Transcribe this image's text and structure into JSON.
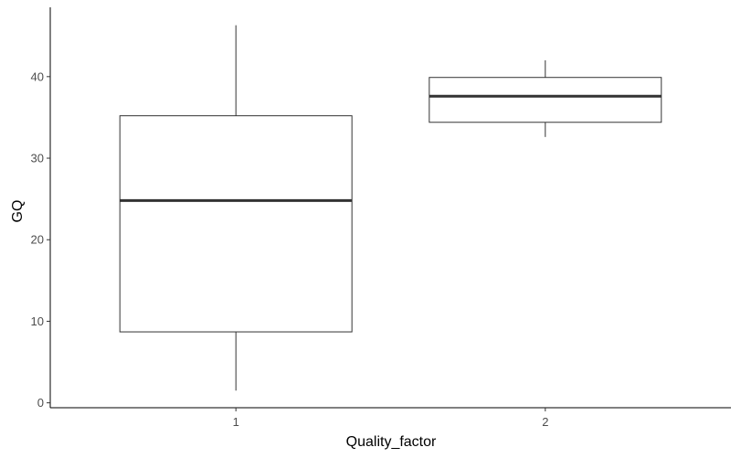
{
  "chart_data": {
    "type": "boxplot",
    "title": "",
    "xlabel": "Quality_factor",
    "ylabel": "GQ",
    "categories": [
      "1",
      "2"
    ],
    "boxes": [
      {
        "category": "1",
        "whisker_low": 1.5,
        "q1": 8.7,
        "median": 24.8,
        "q3": 35.2,
        "whisker_high": 46.3
      },
      {
        "category": "2",
        "whisker_low": 32.6,
        "q1": 34.4,
        "median": 37.6,
        "q3": 39.9,
        "whisker_high": 42.0
      }
    ],
    "y_ticks": [
      0,
      10,
      20,
      30,
      40
    ],
    "ylim": [
      -0.6,
      48.5
    ],
    "grid": false,
    "legend": "none",
    "colors": {
      "box_fill": "#ffffff",
      "box_stroke": "#333333",
      "median": "#333333",
      "axis": "#000000",
      "tick_label": "#4d4d4d"
    }
  }
}
